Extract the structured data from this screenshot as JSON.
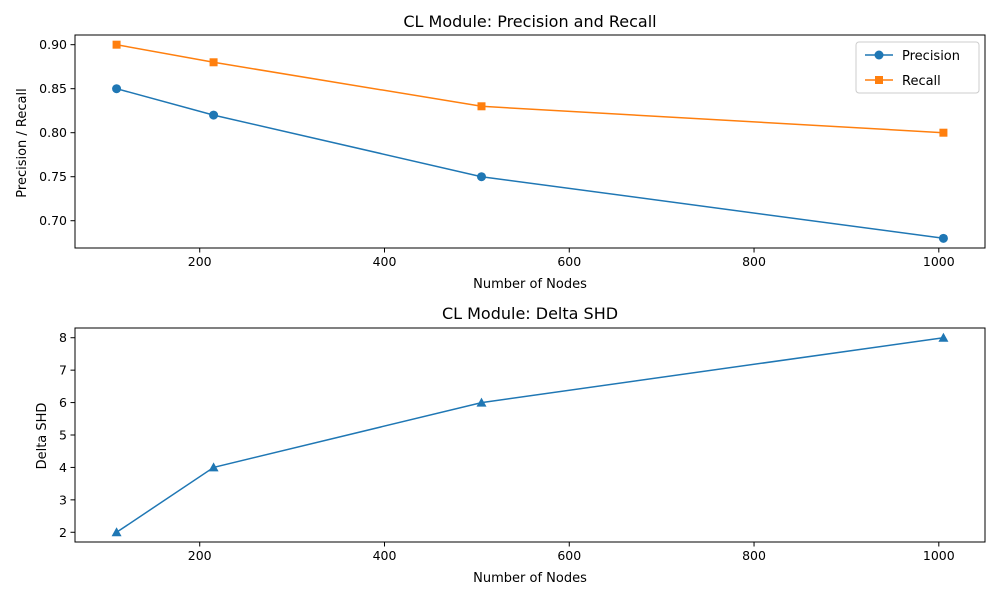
{
  "colors": {
    "precision": "#1f77b4",
    "recall": "#ff7f0e",
    "delta_shd": "#1f77b4"
  },
  "chart_data": [
    {
      "type": "line",
      "title": "CL Module: Precision and Recall",
      "xlabel": "Number of Nodes",
      "ylabel": "Precision / Recall",
      "x": [
        110,
        215,
        505,
        1005
      ],
      "series": [
        {
          "name": "Precision",
          "values": [
            0.85,
            0.82,
            0.75,
            0.68
          ],
          "marker": "circle",
          "color": "#1f77b4"
        },
        {
          "name": "Recall",
          "values": [
            0.9,
            0.88,
            0.83,
            0.8
          ],
          "marker": "square",
          "color": "#ff7f0e"
        }
      ],
      "xlim": [
        65,
        1050
      ],
      "ylim": [
        0.669,
        0.911
      ],
      "xticks": [
        200,
        400,
        600,
        800,
        1000
      ],
      "yticks": [
        0.7,
        0.75,
        0.8,
        0.85,
        0.9
      ],
      "ytick_labels": [
        "0.70",
        "0.75",
        "0.80",
        "0.85",
        "0.90"
      ],
      "legend": "top-right",
      "grid": false
    },
    {
      "type": "line",
      "title": "CL Module: Delta SHD",
      "xlabel": "Number of Nodes",
      "ylabel": "Delta SHD",
      "x": [
        110,
        215,
        505,
        1005
      ],
      "series": [
        {
          "values": [
            2,
            4,
            6,
            8
          ],
          "marker": "triangle",
          "color": "#1f77b4"
        }
      ],
      "xlim": [
        65,
        1050
      ],
      "ylim": [
        1.7,
        8.3
      ],
      "xticks": [
        200,
        400,
        600,
        800,
        1000
      ],
      "yticks": [
        2,
        3,
        4,
        5,
        6,
        7,
        8
      ],
      "ytick_labels": [
        "2",
        "3",
        "4",
        "5",
        "6",
        "7",
        "8"
      ],
      "grid": false
    }
  ]
}
